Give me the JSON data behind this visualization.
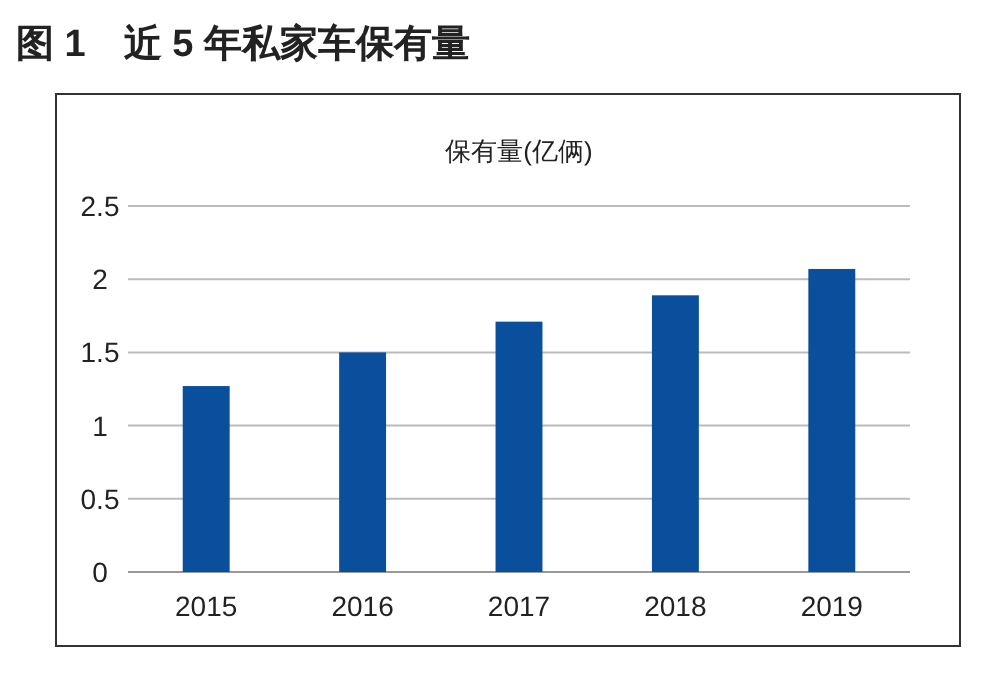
{
  "chart_data": {
    "type": "bar",
    "title": "图 1　近 5 年私家车保有量",
    "ylabel": "保有量(亿俩)",
    "categories": [
      "2015",
      "2016",
      "2017",
      "2018",
      "2019"
    ],
    "values": [
      1.27,
      1.5,
      1.71,
      1.89,
      2.07
    ],
    "color": "#0a4f9c",
    "ylim": [
      0,
      2.5
    ],
    "yticks": [
      0,
      0.5,
      1,
      1.5,
      2,
      2.5
    ],
    "grid": "y"
  }
}
